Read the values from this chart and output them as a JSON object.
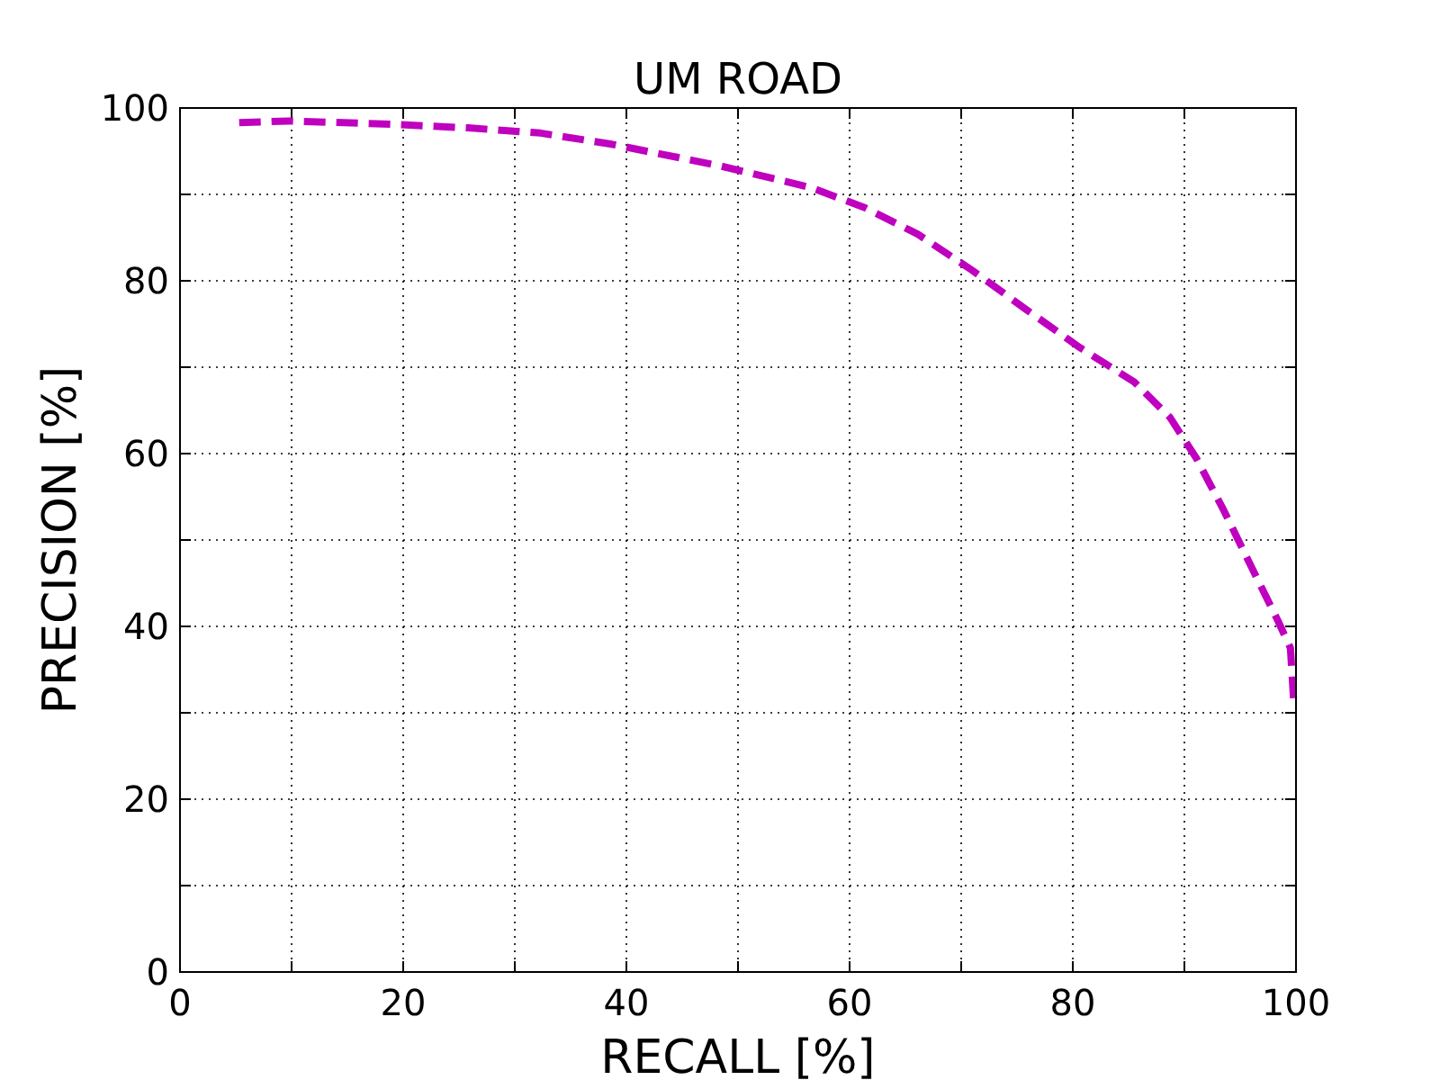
{
  "chart_data": {
    "type": "line",
    "title": "UM ROAD",
    "xlabel": "RECALL [%]",
    "ylabel": "PRECISION [%]",
    "xlim": [
      0,
      100
    ],
    "ylim": [
      0,
      100
    ],
    "xticks": [
      0,
      {
        "value": 10,
        "label": null
      },
      20,
      {
        "value": 30,
        "label": null
      },
      40,
      {
        "value": 50,
        "label": null
      },
      60,
      {
        "value": 70,
        "label": null
      },
      80,
      {
        "value": 90,
        "label": null
      },
      100
    ],
    "yticks": [
      0,
      {
        "value": 10,
        "label": null
      },
      20,
      {
        "value": 30,
        "label": null
      },
      40,
      {
        "value": 50,
        "label": null
      },
      60,
      {
        "value": 70,
        "label": null
      },
      80,
      {
        "value": 90,
        "label": null
      },
      100
    ],
    "grid": true,
    "line_style": "dashed",
    "x": [
      5.3,
      9.7,
      19.4,
      25.8,
      32.3,
      38.7,
      48.4,
      56.5,
      61.3,
      66.1,
      71,
      75.8,
      80.6,
      85.5,
      88.7,
      91.1,
      93.5,
      96,
      98.4,
      99.5,
      99.8
    ],
    "series": [
      {
        "color": "#bf00bf",
        "values": [
          98.3,
          98.5,
          98.1,
          97.7,
          97.1,
          95.8,
          93.3,
          90.8,
          88.5,
          85.4,
          81.2,
          76.7,
          72.3,
          68.3,
          64.2,
          59.4,
          53.5,
          46.9,
          40.6,
          37.5,
          31.2
        ]
      }
    ]
  }
}
